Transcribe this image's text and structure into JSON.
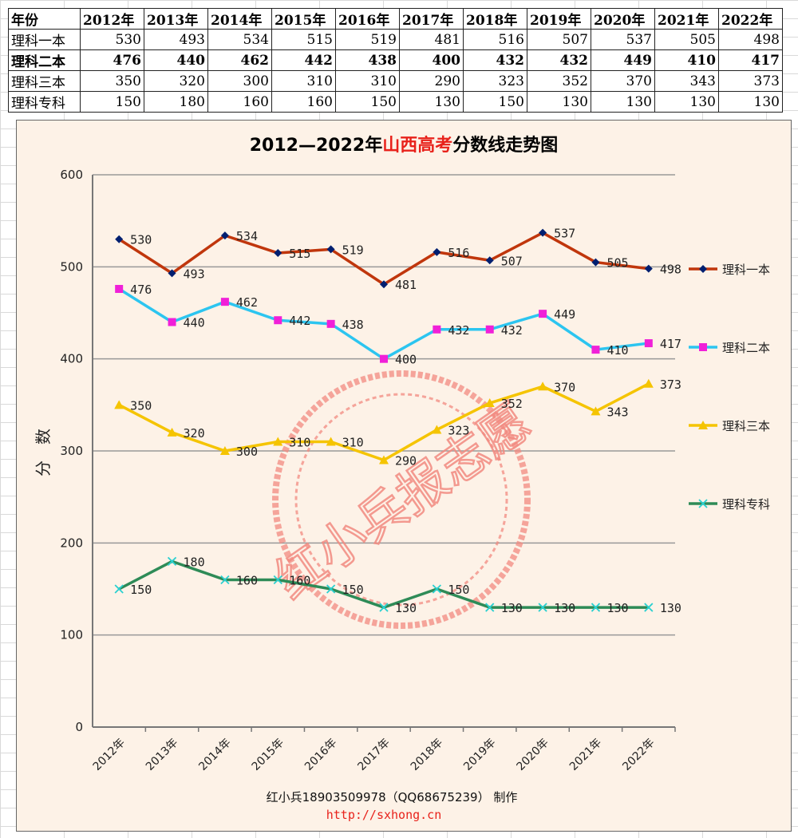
{
  "table": {
    "header_label": "年份",
    "years": [
      "2012年",
      "2013年",
      "2014年",
      "2015年",
      "2016年",
      "2017年",
      "2018年",
      "2019年",
      "2020年",
      "2021年",
      "2022年"
    ],
    "rows": [
      {
        "label": "理科一本",
        "values": [
          530,
          493,
          534,
          515,
          519,
          481,
          516,
          507,
          537,
          505,
          498
        ]
      },
      {
        "label": "理科二本",
        "values": [
          476,
          440,
          462,
          442,
          438,
          400,
          432,
          432,
          449,
          410,
          417
        ]
      },
      {
        "label": "理科三本",
        "values": [
          350,
          320,
          300,
          310,
          310,
          290,
          323,
          352,
          370,
          343,
          373
        ]
      },
      {
        "label": "理科专科",
        "values": [
          150,
          180,
          160,
          160,
          150,
          130,
          150,
          130,
          130,
          130,
          130
        ]
      }
    ]
  },
  "chart_data": {
    "type": "line",
    "title_part1": "2012—2022年",
    "title_highlight": "山西高考",
    "title_part2": "分数线走势图",
    "title_highlight_color": "#e8221b",
    "ylabel": "分　数",
    "ylim": [
      0,
      600
    ],
    "yticks": [
      0,
      100,
      200,
      300,
      400,
      500,
      600
    ],
    "categories": [
      "2012年",
      "2013年",
      "2014年",
      "2015年",
      "2016年",
      "2017年",
      "2018年",
      "2019年",
      "2020年",
      "2021年",
      "2022年"
    ],
    "grid": true,
    "legend_position": "right",
    "series": [
      {
        "name": "理科一本",
        "color": "#c0360c",
        "marker": "diamond",
        "marker_color": "#001f70",
        "values": [
          530,
          493,
          534,
          515,
          519,
          481,
          516,
          507,
          537,
          505,
          498
        ]
      },
      {
        "name": "理科二本",
        "color": "#2cc5f0",
        "marker": "square",
        "marker_color": "#f020d8",
        "values": [
          476,
          440,
          462,
          442,
          438,
          400,
          432,
          432,
          449,
          410,
          417
        ]
      },
      {
        "name": "理科三本",
        "color": "#f5c400",
        "marker": "triangle",
        "marker_color": "#f5c400",
        "values": [
          350,
          320,
          300,
          310,
          310,
          290,
          323,
          352,
          370,
          343,
          373
        ]
      },
      {
        "name": "理科专科",
        "color": "#2e8b57",
        "marker": "x",
        "marker_color": "#2ad0d0",
        "values": [
          150,
          180,
          160,
          160,
          150,
          130,
          150,
          130,
          130,
          130,
          130
        ]
      }
    ],
    "watermark": "红小兵报志愿",
    "footer_line1": "红小兵18903509978（QQ68675239） 制作",
    "footer_line2": "http://sxhong.cn"
  }
}
